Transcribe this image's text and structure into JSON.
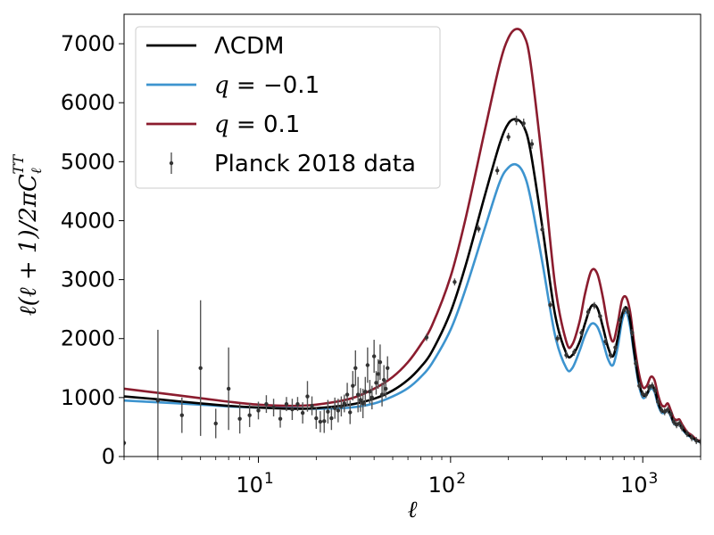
{
  "chart_data": {
    "type": "line",
    "xscale": "log",
    "xlim": [
      2,
      2000
    ],
    "ylim": [
      0,
      7500
    ],
    "xlabel": "ℓ",
    "ylabel": "ℓ(ℓ + 1)/2πC_ℓ^TT",
    "ylabel_parts": {
      "main": "ℓ(ℓ + 1)/2πC",
      "sub": "ℓ",
      "sup": "TT"
    },
    "yticks": [
      0,
      1000,
      2000,
      3000,
      4000,
      5000,
      6000,
      7000
    ],
    "xticks": [
      {
        "value": 10,
        "base": "10",
        "exp": "1"
      },
      {
        "value": 100,
        "base": "10",
        "exp": "2"
      },
      {
        "value": 1000,
        "base": "10",
        "exp": "3"
      }
    ],
    "legend_position": "top-left",
    "series": [
      {
        "name": "ΛCDM",
        "color": "#000000",
        "x": [
          2,
          3,
          5,
          7,
          10,
          15,
          20,
          30,
          40,
          50,
          60,
          70,
          80,
          100,
          120,
          150,
          180,
          200,
          220,
          240,
          260,
          300,
          350,
          400,
          430,
          470,
          500,
          540,
          580,
          620,
          660,
          700,
          740,
          780,
          820,
          860,
          900,
          950,
          1000,
          1050,
          1100,
          1150,
          1200,
          1250,
          1300,
          1350,
          1400,
          1450,
          1500,
          1550,
          1600,
          1700,
          1800,
          1900,
          2000
        ],
        "values": [
          1020,
          970,
          900,
          860,
          830,
          810,
          820,
          880,
          980,
          1120,
          1300,
          1520,
          1780,
          2450,
          3250,
          4400,
          5300,
          5650,
          5720,
          5600,
          5200,
          3900,
          2400,
          1750,
          1720,
          1950,
          2250,
          2550,
          2520,
          2200,
          1850,
          1700,
          2000,
          2400,
          2530,
          2300,
          1800,
          1300,
          1050,
          1060,
          1200,
          1150,
          920,
          780,
          760,
          800,
          700,
          580,
          550,
          560,
          490,
          380,
          330,
          270,
          250
        ]
      },
      {
        "name": "q = −0.1",
        "color": "#3d94cf",
        "x": [
          2,
          3,
          5,
          7,
          10,
          15,
          20,
          30,
          40,
          50,
          60,
          70,
          80,
          100,
          120,
          150,
          180,
          200,
          220,
          240,
          260,
          300,
          350,
          400,
          430,
          470,
          500,
          540,
          580,
          620,
          660,
          700,
          740,
          780,
          820,
          860,
          900,
          950,
          1000,
          1050,
          1100,
          1150,
          1200,
          1250,
          1300,
          1350,
          1400,
          1450,
          1500,
          1550,
          1600,
          1700,
          1800,
          1900,
          2000
        ],
        "values": [
          950,
          920,
          880,
          850,
          830,
          820,
          810,
          830,
          900,
          1020,
          1160,
          1350,
          1580,
          2150,
          2850,
          3850,
          4650,
          4900,
          4950,
          4800,
          4400,
          3300,
          2050,
          1500,
          1500,
          1800,
          2050,
          2250,
          2200,
          1950,
          1650,
          1550,
          1850,
          2300,
          2450,
          2200,
          1750,
          1250,
          1000,
          1050,
          1150,
          1100,
          880,
          750,
          740,
          780,
          680,
          560,
          530,
          540,
          470,
          370,
          320,
          265,
          245
        ]
      },
      {
        "name": "q = 0.1",
        "color": "#8b1c2e",
        "x": [
          2,
          3,
          5,
          7,
          10,
          15,
          20,
          30,
          40,
          50,
          60,
          70,
          80,
          100,
          120,
          150,
          180,
          200,
          220,
          240,
          260,
          300,
          350,
          400,
          430,
          470,
          500,
          540,
          580,
          620,
          660,
          700,
          740,
          780,
          820,
          860,
          900,
          950,
          1000,
          1050,
          1100,
          1150,
          1200,
          1250,
          1300,
          1350,
          1400,
          1450,
          1500,
          1550,
          1600,
          1700,
          1800,
          1900,
          2000
        ],
        "values": [
          1150,
          1080,
          990,
          930,
          880,
          860,
          880,
          980,
          1150,
          1350,
          1600,
          1900,
          2220,
          3050,
          4050,
          5500,
          6650,
          7100,
          7250,
          7150,
          6700,
          5000,
          2900,
          1950,
          1900,
          2300,
          2750,
          3150,
          3100,
          2700,
          2200,
          1950,
          2250,
          2650,
          2700,
          2450,
          1950,
          1450,
          1180,
          1200,
          1350,
          1300,
          1050,
          880,
          850,
          900,
          780,
          650,
          620,
          630,
          550,
          420,
          360,
          290,
          260
        ]
      },
      {
        "name": "Planck 2018 data",
        "color": "#333333",
        "kind": "errorbar",
        "points": [
          [
            2,
            230,
            50
          ],
          [
            3,
            950,
            1200
          ],
          [
            4,
            700,
            300
          ],
          [
            5,
            1500,
            1150
          ],
          [
            6,
            560,
            250
          ],
          [
            7,
            1150,
            700
          ],
          [
            8,
            640,
            250
          ],
          [
            9,
            700,
            200
          ],
          [
            10,
            780,
            150
          ],
          [
            11,
            890,
            150
          ],
          [
            12,
            830,
            150
          ],
          [
            13,
            640,
            150
          ],
          [
            14,
            890,
            120
          ],
          [
            15,
            800,
            180
          ],
          [
            16,
            890,
            120
          ],
          [
            17,
            740,
            180
          ],
          [
            18,
            1020,
            260
          ],
          [
            19,
            860,
            160
          ],
          [
            20,
            650,
            180
          ],
          [
            21,
            590,
            180
          ],
          [
            22,
            600,
            200
          ],
          [
            23,
            760,
            200
          ],
          [
            24,
            650,
            200
          ],
          [
            25,
            820,
            180
          ],
          [
            26,
            780,
            200
          ],
          [
            27,
            850,
            170
          ],
          [
            28,
            900,
            150
          ],
          [
            29,
            1050,
            200
          ],
          [
            30,
            750,
            200
          ],
          [
            31,
            1200,
            250
          ],
          [
            32,
            1500,
            300
          ],
          [
            33,
            1050,
            300
          ],
          [
            34,
            960,
            200
          ],
          [
            35,
            900,
            250
          ],
          [
            36,
            1100,
            250
          ],
          [
            37,
            1550,
            300
          ],
          [
            38,
            1100,
            200
          ],
          [
            39,
            1000,
            200
          ],
          [
            40,
            1700,
            280
          ],
          [
            41,
            1250,
            200
          ],
          [
            42,
            1400,
            250
          ],
          [
            43,
            1600,
            300
          ],
          [
            44,
            1050,
            200
          ],
          [
            45,
            1300,
            250
          ],
          [
            46,
            1150,
            150
          ],
          [
            47,
            1500,
            200
          ],
          [
            75,
            2020,
            60
          ],
          [
            105,
            2960,
            60
          ],
          [
            140,
            3860,
            60
          ],
          [
            175,
            4850,
            70
          ],
          [
            200,
            5420,
            70
          ],
          [
            220,
            5700,
            80
          ],
          [
            240,
            5650,
            80
          ],
          [
            265,
            5300,
            80
          ],
          [
            300,
            3850,
            70
          ],
          [
            330,
            2570,
            60
          ],
          [
            360,
            2000,
            60
          ],
          [
            400,
            1720,
            60
          ],
          [
            440,
            1770,
            60
          ],
          [
            480,
            2100,
            60
          ],
          [
            520,
            2450,
            60
          ],
          [
            560,
            2560,
            60
          ],
          [
            600,
            2380,
            60
          ],
          [
            640,
            1950,
            60
          ],
          [
            680,
            1720,
            60
          ],
          [
            720,
            1850,
            60
          ],
          [
            760,
            2320,
            60
          ],
          [
            800,
            2480,
            60
          ],
          [
            840,
            2450,
            60
          ],
          [
            880,
            2100,
            60
          ],
          [
            920,
            1580,
            60
          ],
          [
            960,
            1200,
            60
          ],
          [
            1000,
            1060,
            60
          ],
          [
            1040,
            1050,
            60
          ],
          [
            1080,
            1170,
            60
          ],
          [
            1120,
            1200,
            60
          ],
          [
            1160,
            1120,
            60
          ],
          [
            1200,
            930,
            60
          ],
          [
            1250,
            790,
            60
          ],
          [
            1300,
            760,
            60
          ],
          [
            1350,
            790,
            60
          ],
          [
            1400,
            720,
            60
          ],
          [
            1450,
            590,
            60
          ],
          [
            1500,
            540,
            60
          ],
          [
            1550,
            560,
            60
          ],
          [
            1600,
            490,
            60
          ],
          [
            1700,
            390,
            60
          ],
          [
            1800,
            320,
            60
          ],
          [
            1900,
            270,
            60
          ],
          [
            2000,
            250,
            60
          ]
        ]
      }
    ],
    "legend": [
      {
        "label": "ΛCDM",
        "label_parts": {
          "pre": "ΛCDM",
          "var": "",
          "post": ""
        },
        "color": "#000000",
        "kind": "line"
      },
      {
        "label": "q = −0.1",
        "label_parts": {
          "pre": "",
          "var": "q",
          "post": " = −0.1"
        },
        "color": "#3d94cf",
        "kind": "line"
      },
      {
        "label": "q = 0.1",
        "label_parts": {
          "pre": "",
          "var": "q",
          "post": " = 0.1"
        },
        "color": "#8b1c2e",
        "kind": "line"
      },
      {
        "label": "Planck 2018 data",
        "label_parts": {
          "pre": "Planck 2018 data",
          "var": "",
          "post": ""
        },
        "color": "#333333",
        "kind": "errorbar"
      }
    ]
  }
}
